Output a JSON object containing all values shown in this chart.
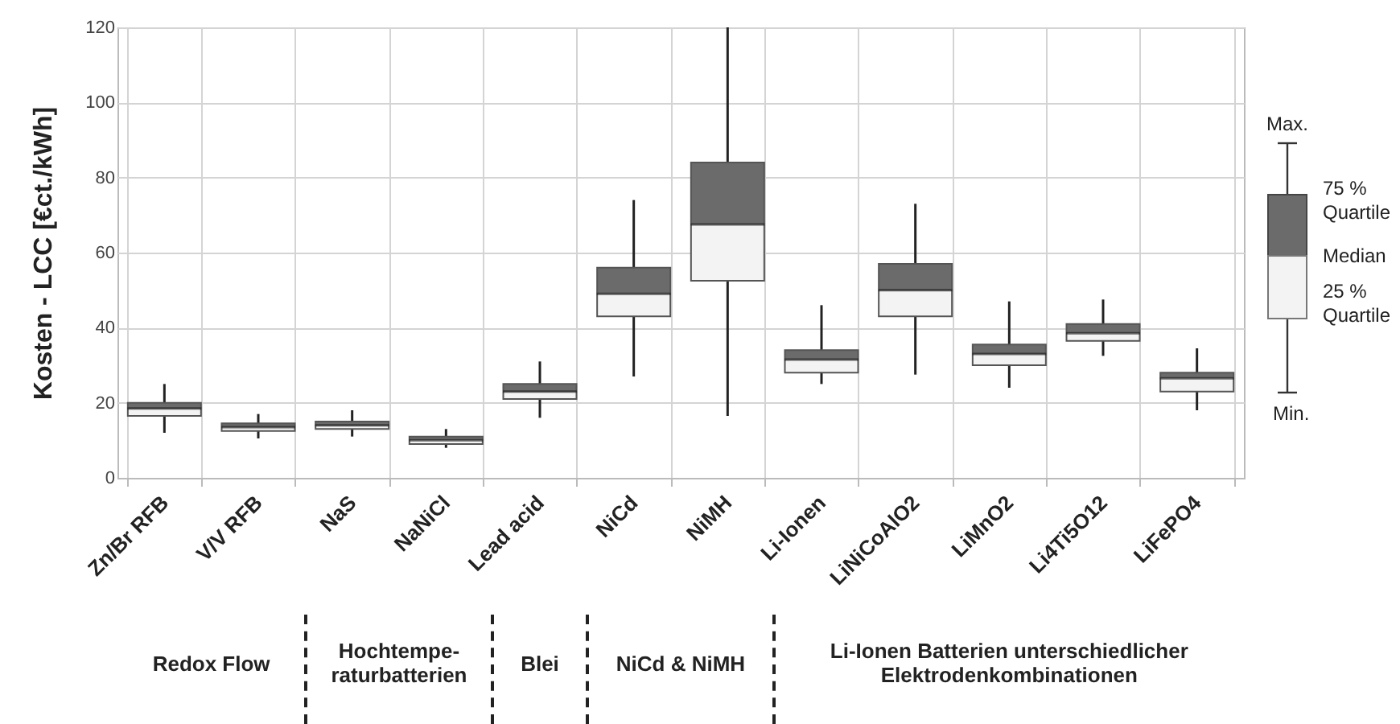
{
  "chart_data": {
    "type": "box",
    "ylabel": "Kosten - LCC [€ct./kWh]",
    "categories": [
      "Zn/Br RFB",
      "V/V RFB",
      "NaS",
      "NaNiCl",
      "Lead acid",
      "NiCd",
      "NiMH",
      "Li-Ionen",
      "LiNiCoAlO2",
      "LiMnO2",
      "Li4Ti5O12",
      "LiFePO4"
    ],
    "boxes": [
      {
        "low": 12,
        "q1": 16.5,
        "median": 18.5,
        "q3": 20,
        "high": 25
      },
      {
        "low": 10.5,
        "q1": 12.5,
        "median": 13.5,
        "q3": 14.5,
        "high": 17
      },
      {
        "low": 11,
        "q1": 13,
        "median": 14,
        "q3": 15,
        "high": 18
      },
      {
        "low": 8,
        "q1": 9,
        "median": 10,
        "q3": 11,
        "high": 13
      },
      {
        "low": 16,
        "q1": 21,
        "median": 23,
        "q3": 25,
        "high": 31
      },
      {
        "low": 27,
        "q1": 43,
        "median": 49,
        "q3": 56,
        "high": 74
      },
      {
        "low": 16.5,
        "q1": 52.5,
        "median": 67.5,
        "q3": 84,
        "high": 120
      },
      {
        "low": 25,
        "q1": 28,
        "median": 31.5,
        "q3": 34,
        "high": 46
      },
      {
        "low": 27.5,
        "q1": 43,
        "median": 50,
        "q3": 57,
        "high": 73
      },
      {
        "low": 24,
        "q1": 30,
        "median": 33,
        "q3": 35.5,
        "high": 47
      },
      {
        "low": 32.5,
        "q1": 36.5,
        "median": 38.5,
        "q3": 41,
        "high": 47.5
      },
      {
        "low": 18,
        "q1": 23,
        "median": 26.5,
        "q3": 28,
        "high": 34.5
      }
    ],
    "ylim": [
      0,
      120
    ],
    "yticks": [
      0,
      20,
      40,
      60,
      80,
      100,
      120
    ],
    "grid": true,
    "annotations": [
      "Redox Flow",
      "Hochtempe-raturbatterien",
      "Blei",
      "NiCd & NiMH",
      "Li-Ionen Batterien unterschiedlicher Elektrodenkombinationen",
      "Max.",
      "75 % Quartile",
      "Median",
      "25 % Quartile",
      "Min."
    ]
  }
}
